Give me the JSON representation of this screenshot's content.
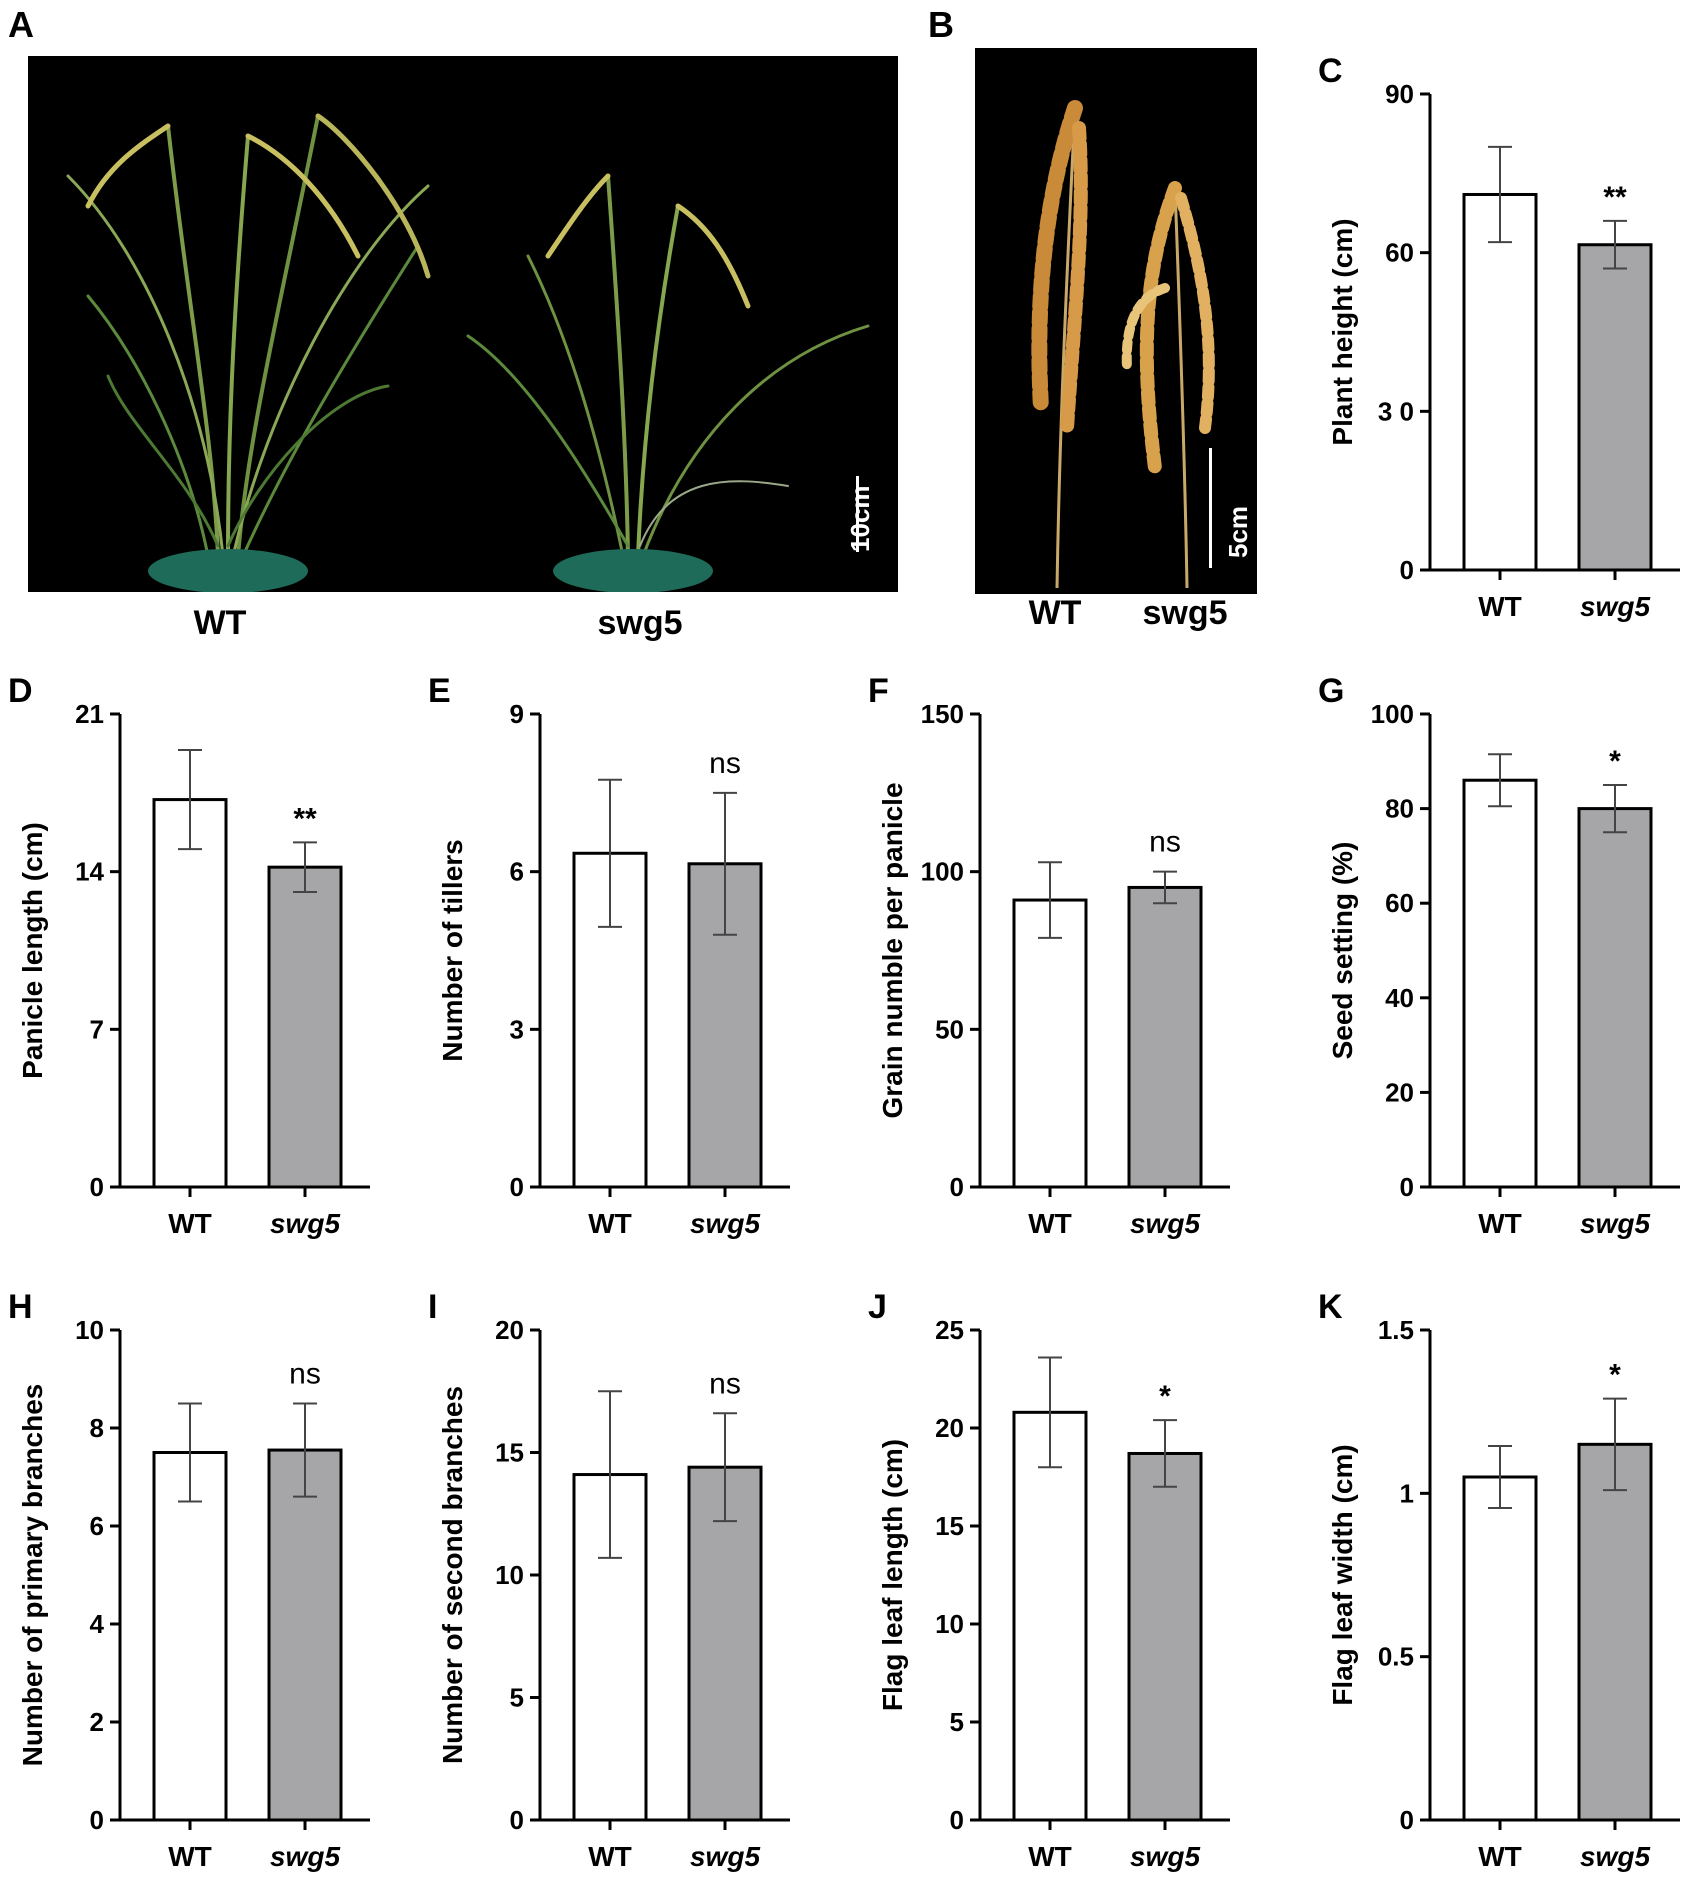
{
  "panels": {
    "A": {
      "label": "A",
      "captions": [
        "WT",
        "swg5"
      ],
      "scale": "10cm"
    },
    "B": {
      "label": "B",
      "captions": [
        "WT",
        "swg5"
      ],
      "scale": "5cm"
    }
  },
  "colors": {
    "wt_bar": "#ffffff",
    "mutant_bar": "#a6a6a8",
    "photo_bg": "#000000"
  },
  "chart_data": [
    {
      "panel": "C",
      "type": "bar",
      "categories": [
        "WT",
        "swg5"
      ],
      "values": [
        71,
        61.5
      ],
      "errors": [
        9,
        4.5
      ],
      "significance": [
        "",
        "**"
      ],
      "ylabel": "Plant height (cm)",
      "ylim": [
        0,
        90
      ],
      "yticks": [
        0,
        30,
        60,
        90
      ],
      "ytick_labels": [
        "0",
        "3 0",
        "60",
        "90"
      ]
    },
    {
      "panel": "D",
      "type": "bar",
      "categories": [
        "WT",
        "swg5"
      ],
      "values": [
        17.2,
        14.2
      ],
      "errors": [
        2.2,
        1.1
      ],
      "significance": [
        "",
        "**"
      ],
      "ylabel": "Panicle length (cm)",
      "ylim": [
        0,
        21
      ],
      "yticks": [
        0,
        7,
        14,
        21
      ],
      "ytick_labels": [
        "0",
        "7",
        "14",
        "21"
      ]
    },
    {
      "panel": "E",
      "type": "bar",
      "categories": [
        "WT",
        "swg5"
      ],
      "values": [
        6.35,
        6.15
      ],
      "errors": [
        1.4,
        1.35
      ],
      "significance": [
        "",
        "ns"
      ],
      "ylabel": "Number of tillers",
      "ylim": [
        0,
        9
      ],
      "yticks": [
        0,
        3,
        6,
        9
      ],
      "ytick_labels": [
        "0",
        "3",
        "6",
        "9"
      ]
    },
    {
      "panel": "F",
      "type": "bar",
      "categories": [
        "WT",
        "swg5"
      ],
      "values": [
        91,
        95
      ],
      "errors": [
        12,
        5
      ],
      "significance": [
        "",
        "ns"
      ],
      "ylabel": "Grain numble per panicle",
      "ylim": [
        0,
        150
      ],
      "yticks": [
        0,
        50,
        100,
        150
      ],
      "ytick_labels": [
        "0",
        "50",
        "100",
        "150"
      ]
    },
    {
      "panel": "G",
      "type": "bar",
      "categories": [
        "WT",
        "swg5"
      ],
      "values": [
        86,
        80
      ],
      "errors": [
        5.5,
        5
      ],
      "significance": [
        "",
        "*"
      ],
      "ylabel": "Seed setting  (%)",
      "ylim": [
        0,
        100
      ],
      "yticks": [
        0,
        20,
        40,
        60,
        80,
        100
      ],
      "ytick_labels": [
        "0",
        "20",
        "40",
        "60",
        "80",
        "100"
      ]
    },
    {
      "panel": "H",
      "type": "bar",
      "categories": [
        "WT",
        "swg5"
      ],
      "values": [
        7.5,
        7.55
      ],
      "errors": [
        1.0,
        0.95
      ],
      "significance": [
        "",
        "ns"
      ],
      "ylabel": "Number of primary branches",
      "ylim": [
        0,
        10
      ],
      "yticks": [
        0,
        2,
        4,
        6,
        8,
        10
      ],
      "ytick_labels": [
        "0",
        "2",
        "4",
        "6",
        "8",
        "10"
      ]
    },
    {
      "panel": "I",
      "type": "bar",
      "categories": [
        "WT",
        "swg5"
      ],
      "values": [
        14.1,
        14.4
      ],
      "errors": [
        3.4,
        2.2
      ],
      "significance": [
        "",
        "ns"
      ],
      "ylabel": "Number of second branches",
      "ylim": [
        0,
        20
      ],
      "yticks": [
        0,
        5,
        10,
        15,
        20
      ],
      "ytick_labels": [
        "0",
        "5",
        "10",
        "15",
        "20"
      ]
    },
    {
      "panel": "J",
      "type": "bar",
      "categories": [
        "WT",
        "swg5"
      ],
      "values": [
        20.8,
        18.7
      ],
      "errors": [
        2.8,
        1.7
      ],
      "significance": [
        "",
        "*"
      ],
      "ylabel": "Flag leaf length (cm)",
      "ylim": [
        0,
        25
      ],
      "yticks": [
        0,
        5,
        10,
        15,
        20,
        25
      ],
      "ytick_labels": [
        "0",
        "5",
        "10",
        "15",
        "20",
        "25"
      ]
    },
    {
      "panel": "K",
      "type": "bar",
      "categories": [
        "WT",
        "swg5"
      ],
      "values": [
        1.05,
        1.15
      ],
      "errors": [
        0.095,
        0.14
      ],
      "significance": [
        "",
        "*"
      ],
      "ylabel": "Flag leaf width (cm)",
      "ylim": [
        0,
        1.5
      ],
      "yticks": [
        0,
        0.5,
        1,
        1.5
      ],
      "ytick_labels": [
        "0",
        "0.5",
        "1",
        "1.5"
      ]
    }
  ]
}
